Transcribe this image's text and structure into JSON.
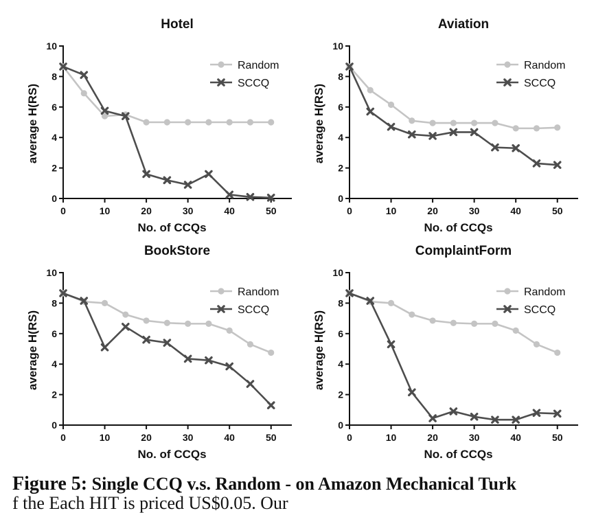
{
  "colors": {
    "random": "#c4c4c4",
    "sccq": "#4d4d4d",
    "axis": "#111111"
  },
  "chart_data": [
    {
      "type": "line",
      "title": "Hotel",
      "xlabel": "No. of CCQs",
      "ylabel": "average H(RS)",
      "xlim": [
        0,
        55
      ],
      "ylim": [
        0,
        10
      ],
      "x_ticks": [
        "0",
        "10",
        "20",
        "30",
        "40",
        "50"
      ],
      "y_ticks": [
        "0",
        "2",
        "4",
        "6",
        "8",
        "10"
      ],
      "legend_position": "top-right",
      "x": [
        0,
        5,
        10,
        15,
        20,
        25,
        30,
        35,
        40,
        45,
        50
      ],
      "series": [
        {
          "name": "Random",
          "marker": "circle",
          "values": [
            8.65,
            6.9,
            5.4,
            5.5,
            5.0,
            5.0,
            5.0,
            5.0,
            5.0,
            5.0,
            5.0
          ]
        },
        {
          "name": "SCCQ",
          "marker": "cross",
          "values": [
            8.65,
            8.1,
            5.75,
            5.4,
            1.6,
            1.2,
            0.9,
            1.6,
            0.25,
            0.1,
            0.05
          ]
        }
      ]
    },
    {
      "type": "line",
      "title": "Aviation",
      "xlabel": "No. of CCQs",
      "ylabel": "average H(RS)",
      "xlim": [
        0,
        55
      ],
      "ylim": [
        0,
        10
      ],
      "x_ticks": [
        "0",
        "10",
        "20",
        "30",
        "40",
        "50"
      ],
      "y_ticks": [
        "0",
        "2",
        "4",
        "6",
        "8",
        "10"
      ],
      "legend_position": "top-right",
      "x": [
        0,
        5,
        10,
        15,
        20,
        25,
        30,
        35,
        40,
        45,
        50
      ],
      "series": [
        {
          "name": "Random",
          "marker": "circle",
          "values": [
            8.65,
            7.1,
            6.15,
            5.1,
            4.95,
            4.95,
            4.95,
            4.95,
            4.6,
            4.6,
            4.65
          ]
        },
        {
          "name": "SCCQ",
          "marker": "cross",
          "values": [
            8.65,
            5.7,
            4.7,
            4.2,
            4.1,
            4.35,
            4.35,
            3.35,
            3.3,
            2.3,
            2.2
          ]
        }
      ]
    },
    {
      "type": "line",
      "title": "BookStore",
      "xlabel": "No. of CCQs",
      "ylabel": "average H(RS)",
      "xlim": [
        0,
        55
      ],
      "ylim": [
        0,
        10
      ],
      "x_ticks": [
        "0",
        "10",
        "20",
        "30",
        "40",
        "50"
      ],
      "y_ticks": [
        "0",
        "2",
        "4",
        "6",
        "8",
        "10"
      ],
      "legend_position": "top-right",
      "x": [
        0,
        5,
        10,
        15,
        20,
        25,
        30,
        35,
        40,
        45,
        50
      ],
      "series": [
        {
          "name": "Random",
          "marker": "circle",
          "values": [
            8.65,
            8.1,
            8.0,
            7.25,
            6.85,
            6.7,
            6.65,
            6.65,
            6.2,
            5.3,
            4.75
          ]
        },
        {
          "name": "SCCQ",
          "marker": "cross",
          "values": [
            8.65,
            8.15,
            5.1,
            6.45,
            5.6,
            5.4,
            4.35,
            4.25,
            3.85,
            2.7,
            1.3
          ]
        }
      ]
    },
    {
      "type": "line",
      "title": "ComplaintForm",
      "xlabel": "No. of CCQs",
      "ylabel": "average H(RS)",
      "xlim": [
        0,
        55
      ],
      "ylim": [
        0,
        10
      ],
      "x_ticks": [
        "0",
        "10",
        "20",
        "30",
        "40",
        "50"
      ],
      "y_ticks": [
        "0",
        "2",
        "4",
        "6",
        "8",
        "10"
      ],
      "legend_position": "top-right",
      "x": [
        0,
        5,
        10,
        15,
        20,
        25,
        30,
        35,
        40,
        45,
        50
      ],
      "series": [
        {
          "name": "Random",
          "marker": "circle",
          "values": [
            8.65,
            8.1,
            8.0,
            7.25,
            6.85,
            6.7,
            6.65,
            6.65,
            6.2,
            5.3,
            4.75
          ]
        },
        {
          "name": "SCCQ",
          "marker": "cross",
          "values": [
            8.65,
            8.15,
            5.3,
            2.15,
            0.45,
            0.9,
            0.55,
            0.35,
            0.35,
            0.8,
            0.75
          ]
        }
      ]
    }
  ],
  "caption": {
    "label": "Figure 5:",
    "text": "Single CCQ v.s. Random - on Amazon Mechanical Turk",
    "partial_line": "f the                       Each HIT is priced US$0.05. Our"
  }
}
